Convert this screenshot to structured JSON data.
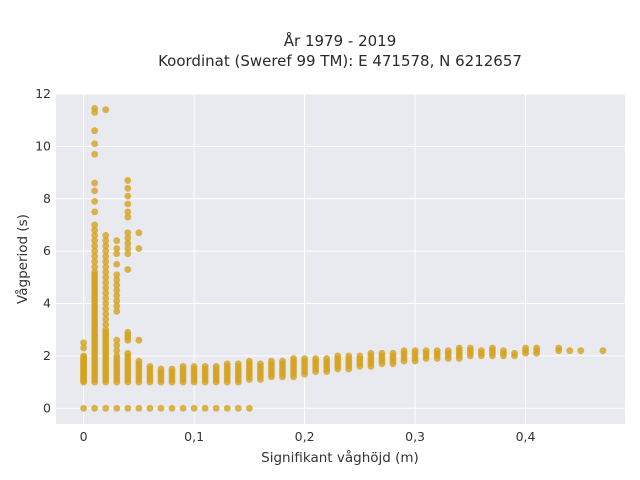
{
  "chart_data": {
    "type": "scatter",
    "title": "År 1979 - 2019",
    "subtitle": "Koordinat (Sweref 99 TM): E 471578, N 6212657",
    "xlabel": "Signifikant våghöjd (m)",
    "ylabel": "Vågperiod (s)",
    "xlim": [
      -0.025,
      0.49
    ],
    "ylim": [
      -0.6,
      12
    ],
    "xticks": [
      0,
      0.1,
      0.2,
      0.3,
      0.4
    ],
    "xtick_labels": [
      "0",
      "0,1",
      "0,2",
      "0,3",
      "0,4"
    ],
    "yticks": [
      0,
      2,
      4,
      6,
      8,
      10,
      12
    ],
    "ytick_labels": [
      "0",
      "2",
      "4",
      "6",
      "8",
      "10",
      "12"
    ],
    "grid": true,
    "background_color": "#e9e9f0",
    "marker_color": "#d4a21e",
    "series": [
      {
        "columns": [
          {
            "x": 0.0,
            "y": [
              0,
              1.0,
              1.05,
              1.1,
              1.15,
              1.2,
              1.25,
              1.3,
              1.35,
              1.4,
              1.45,
              1.5,
              1.55,
              1.6,
              1.65,
              1.7,
              1.75,
              1.8,
              1.85,
              1.9,
              1.95,
              2.0,
              2.3,
              2.5
            ]
          },
          {
            "x": 0.01,
            "y": [
              0,
              1.0,
              1.1,
              1.2,
              1.3,
              1.4,
              1.5,
              1.6,
              1.7,
              1.8,
              1.9,
              2.0,
              2.1,
              2.2,
              2.3,
              2.4,
              2.5,
              2.6,
              2.7,
              2.8,
              2.9,
              3.0,
              3.1,
              3.2,
              3.3,
              3.4,
              3.5,
              3.6,
              3.7,
              3.8,
              3.9,
              4.0,
              4.1,
              4.2,
              4.3,
              4.4,
              4.5,
              4.6,
              4.7,
              4.8,
              4.9,
              5.0,
              5.1,
              5.2,
              5.4,
              5.6,
              5.8,
              6.0,
              6.2,
              6.4,
              6.6,
              6.8,
              7.0,
              7.5,
              7.9,
              8.3,
              8.6,
              9.7,
              10.1,
              10.6,
              11.3,
              11.45
            ]
          },
          {
            "x": 0.02,
            "y": [
              0,
              1.0,
              1.1,
              1.2,
              1.3,
              1.4,
              1.5,
              1.6,
              1.7,
              1.8,
              1.9,
              2.0,
              2.1,
              2.2,
              2.3,
              2.4,
              2.5,
              2.6,
              2.7,
              2.8,
              2.9,
              3.0,
              3.2,
              3.4,
              3.6,
              3.8,
              4.0,
              4.2,
              4.4,
              4.6,
              4.8,
              5.0,
              5.2,
              5.4,
              5.6,
              5.8,
              6.0,
              6.2,
              6.4,
              6.6,
              11.4
            ]
          },
          {
            "x": 0.03,
            "y": [
              0,
              1.0,
              1.1,
              1.2,
              1.3,
              1.4,
              1.5,
              1.6,
              1.7,
              1.8,
              1.9,
              2.0,
              2.2,
              2.4,
              2.6,
              3.7,
              3.9,
              4.1,
              4.3,
              4.5,
              4.7,
              4.9,
              5.1,
              5.5,
              5.9,
              6.1,
              6.4
            ]
          },
          {
            "x": 0.04,
            "y": [
              0,
              1.0,
              1.1,
              1.2,
              1.3,
              1.4,
              1.5,
              1.6,
              1.7,
              1.8,
              1.9,
              2.0,
              2.1,
              2.6,
              2.7,
              2.8,
              2.9,
              5.3,
              5.9,
              6.1,
              6.3,
              6.5,
              6.7,
              7.3,
              7.5,
              7.8,
              8.1,
              8.4,
              8.7
            ]
          },
          {
            "x": 0.05,
            "y": [
              0,
              1.0,
              1.1,
              1.2,
              1.3,
              1.4,
              1.5,
              1.6,
              1.7,
              1.8,
              2.6,
              6.1,
              6.7
            ]
          },
          {
            "x": 0.06,
            "y": [
              0,
              1.0,
              1.1,
              1.2,
              1.3,
              1.4,
              1.5,
              1.6
            ]
          },
          {
            "x": 0.07,
            "y": [
              0,
              1.0,
              1.1,
              1.2,
              1.3,
              1.4,
              1.5
            ]
          },
          {
            "x": 0.08,
            "y": [
              0,
              1.0,
              1.1,
              1.2,
              1.3,
              1.4,
              1.5
            ]
          },
          {
            "x": 0.09,
            "y": [
              0,
              1.0,
              1.1,
              1.2,
              1.3,
              1.4,
              1.5,
              1.6
            ]
          },
          {
            "x": 0.1,
            "y": [
              0,
              1.0,
              1.1,
              1.2,
              1.3,
              1.4,
              1.5,
              1.6
            ]
          },
          {
            "x": 0.11,
            "y": [
              0,
              1.0,
              1.1,
              1.2,
              1.3,
              1.4,
              1.5,
              1.6
            ]
          },
          {
            "x": 0.12,
            "y": [
              0,
              1.0,
              1.1,
              1.2,
              1.3,
              1.4,
              1.5,
              1.6
            ]
          },
          {
            "x": 0.13,
            "y": [
              0,
              1.0,
              1.1,
              1.2,
              1.3,
              1.4,
              1.5,
              1.6,
              1.7
            ]
          },
          {
            "x": 0.14,
            "y": [
              0,
              1.0,
              1.1,
              1.2,
              1.3,
              1.4,
              1.5,
              1.6,
              1.7
            ]
          },
          {
            "x": 0.15,
            "y": [
              0,
              1.1,
              1.2,
              1.3,
              1.4,
              1.5,
              1.6,
              1.7,
              1.8
            ]
          },
          {
            "x": 0.16,
            "y": [
              1.1,
              1.2,
              1.3,
              1.4,
              1.5,
              1.6,
              1.7
            ]
          },
          {
            "x": 0.17,
            "y": [
              1.2,
              1.3,
              1.4,
              1.5,
              1.6,
              1.7,
              1.8
            ]
          },
          {
            "x": 0.18,
            "y": [
              1.2,
              1.3,
              1.4,
              1.5,
              1.6,
              1.7,
              1.8
            ]
          },
          {
            "x": 0.19,
            "y": [
              1.2,
              1.3,
              1.4,
              1.5,
              1.6,
              1.7,
              1.8,
              1.9
            ]
          },
          {
            "x": 0.2,
            "y": [
              1.3,
              1.4,
              1.5,
              1.6,
              1.7,
              1.8,
              1.9
            ]
          },
          {
            "x": 0.21,
            "y": [
              1.4,
              1.5,
              1.6,
              1.7,
              1.8,
              1.9
            ]
          },
          {
            "x": 0.22,
            "y": [
              1.4,
              1.5,
              1.6,
              1.7,
              1.8,
              1.9
            ]
          },
          {
            "x": 0.23,
            "y": [
              1.5,
              1.6,
              1.7,
              1.8,
              1.9,
              2.0
            ]
          },
          {
            "x": 0.24,
            "y": [
              1.5,
              1.6,
              1.7,
              1.8,
              1.9,
              2.0
            ]
          },
          {
            "x": 0.25,
            "y": [
              1.6,
              1.7,
              1.8,
              1.9,
              2.0
            ]
          },
          {
            "x": 0.26,
            "y": [
              1.6,
              1.7,
              1.8,
              1.9,
              2.0,
              2.1
            ]
          },
          {
            "x": 0.27,
            "y": [
              1.7,
              1.8,
              1.9,
              2.0,
              2.1
            ]
          },
          {
            "x": 0.28,
            "y": [
              1.7,
              1.8,
              1.9,
              2.0,
              2.1
            ]
          },
          {
            "x": 0.29,
            "y": [
              1.8,
              1.9,
              2.0,
              2.1,
              2.2
            ]
          },
          {
            "x": 0.3,
            "y": [
              1.8,
              1.9,
              2.0,
              2.1,
              2.2
            ]
          },
          {
            "x": 0.31,
            "y": [
              1.9,
              2.0,
              2.1,
              2.2
            ]
          },
          {
            "x": 0.32,
            "y": [
              1.9,
              2.0,
              2.1,
              2.2
            ]
          },
          {
            "x": 0.33,
            "y": [
              1.9,
              2.0,
              2.1,
              2.2
            ]
          },
          {
            "x": 0.34,
            "y": [
              1.9,
              2.0,
              2.1,
              2.2,
              2.3
            ]
          },
          {
            "x": 0.35,
            "y": [
              2.0,
              2.1,
              2.2,
              2.3
            ]
          },
          {
            "x": 0.36,
            "y": [
              2.0,
              2.1,
              2.2
            ]
          },
          {
            "x": 0.37,
            "y": [
              2.0,
              2.1,
              2.2,
              2.3
            ]
          },
          {
            "x": 0.38,
            "y": [
              2.0,
              2.1,
              2.2
            ]
          },
          {
            "x": 0.39,
            "y": [
              2.0,
              2.1
            ]
          },
          {
            "x": 0.4,
            "y": [
              2.1,
              2.2,
              2.3
            ]
          },
          {
            "x": 0.41,
            "y": [
              2.1,
              2.2,
              2.3
            ]
          },
          {
            "x": 0.43,
            "y": [
              2.2,
              2.3
            ]
          },
          {
            "x": 0.44,
            "y": [
              2.2
            ]
          },
          {
            "x": 0.45,
            "y": [
              2.2
            ]
          },
          {
            "x": 0.47,
            "y": [
              2.2
            ]
          }
        ]
      }
    ]
  }
}
